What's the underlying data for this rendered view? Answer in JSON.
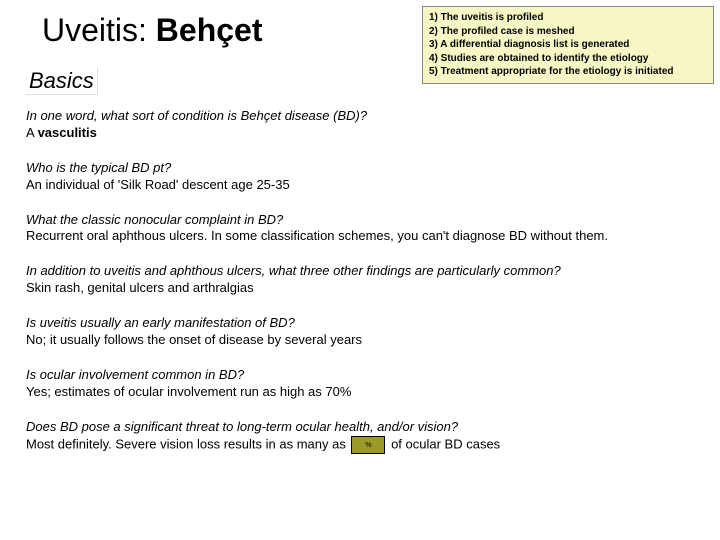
{
  "title": {
    "prefix": "Uveitis: ",
    "bold": "Behçet"
  },
  "basics_label": "Basics",
  "steps": [
    "1) The uveitis is profiled",
    "2) The profiled case is meshed",
    "3) A differential diagnosis list is generated",
    "4) Studies are obtained to identify the etiology",
    "5) Treatment appropriate for the etiology is initiated"
  ],
  "qa": [
    {
      "q": "In one word, what sort of condition is Behçet disease (BD)?",
      "a_prefix": "A ",
      "a_bold": "vasculitis",
      "a_suffix": ""
    },
    {
      "q": "Who is the typical BD pt?",
      "a_prefix": "An individual of 'Silk Road' descent age 25-35",
      "a_bold": "",
      "a_suffix": ""
    },
    {
      "q": "What the classic nonocular complaint in BD?",
      "a_prefix": "Recurrent oral aphthous ulcers. In some classification schemes, you can't diagnose BD without them.",
      "a_bold": "",
      "a_suffix": ""
    },
    {
      "q": "In addition to uveitis and aphthous ulcers, what three other findings are particularly common?",
      "a_prefix": "Skin rash, genital ulcers and arthralgias",
      "a_bold": "",
      "a_suffix": ""
    },
    {
      "q": "Is uveitis usually an early manifestation of BD?",
      "a_prefix": "No; it usually follows the onset of disease by several years",
      "a_bold": "",
      "a_suffix": ""
    },
    {
      "q": "Is ocular involvement common in BD?",
      "a_prefix": "Yes; estimates of ocular involvement run as high as  70%",
      "a_bold": "",
      "a_suffix": ""
    },
    {
      "q": "Does BD pose a significant threat to long-term ocular health, and/or vision?",
      "a_prefix": "Most definitely. Severe vision loss results in as many as ",
      "a_bold": "",
      "a_suffix": " of ocular BD cases",
      "has_box": true,
      "box_text": "%"
    }
  ],
  "colors": {
    "steps_bg": "#f7f7c6",
    "pct_box_bg": "#9a9a2a"
  }
}
